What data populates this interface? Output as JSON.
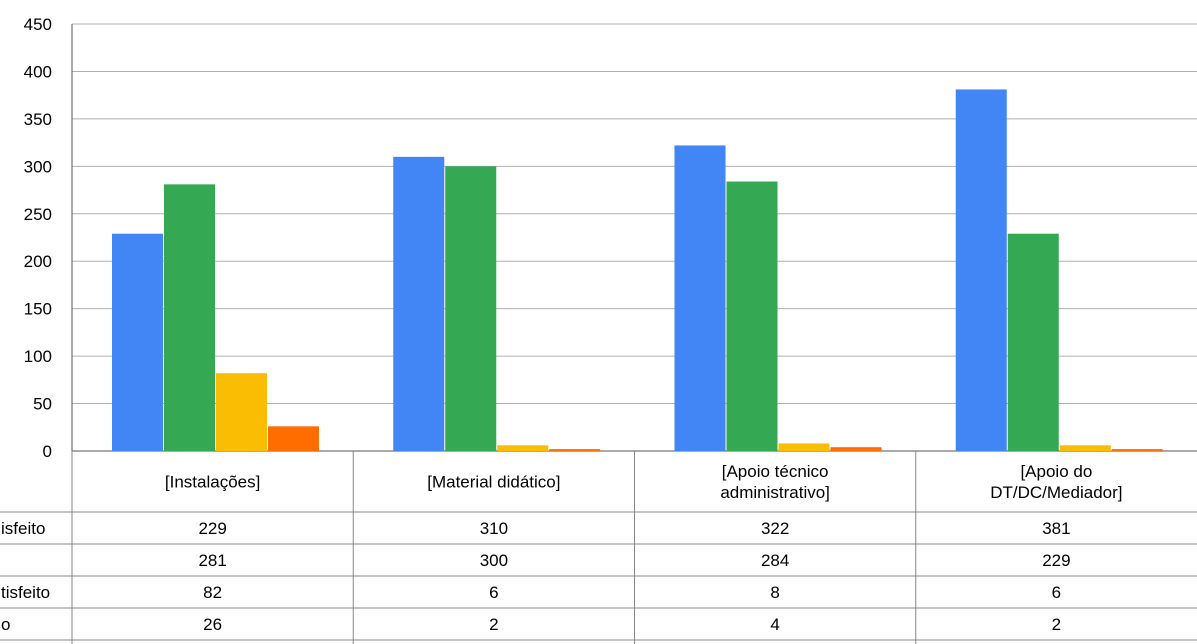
{
  "chart_data": {
    "type": "bar",
    "title": "",
    "xlabel": "",
    "ylabel": "",
    "ylim": [
      0,
      450
    ],
    "yticks": [
      0,
      50,
      100,
      150,
      200,
      250,
      300,
      350,
      400,
      450
    ],
    "grid": true,
    "legend": "data-table",
    "categories": [
      [
        "[Instalações]"
      ],
      [
        "[Material didático]"
      ],
      [
        "[Apoio técnico",
        "administrativo]"
      ],
      [
        "[Apoio do",
        "DT/DC/Mediador]"
      ]
    ],
    "series": [
      {
        "name": "isfeito",
        "color": "#4285F4",
        "values": [
          229,
          310,
          322,
          381
        ]
      },
      {
        "name": "",
        "color": "#34A853",
        "values": [
          281,
          300,
          284,
          229
        ]
      },
      {
        "name": "tisfeito",
        "color": "#FBBC04",
        "values": [
          82,
          6,
          8,
          6
        ]
      },
      {
        "name": "o",
        "color": "#FF6D01",
        "values": [
          26,
          2,
          4,
          2
        ]
      }
    ]
  }
}
